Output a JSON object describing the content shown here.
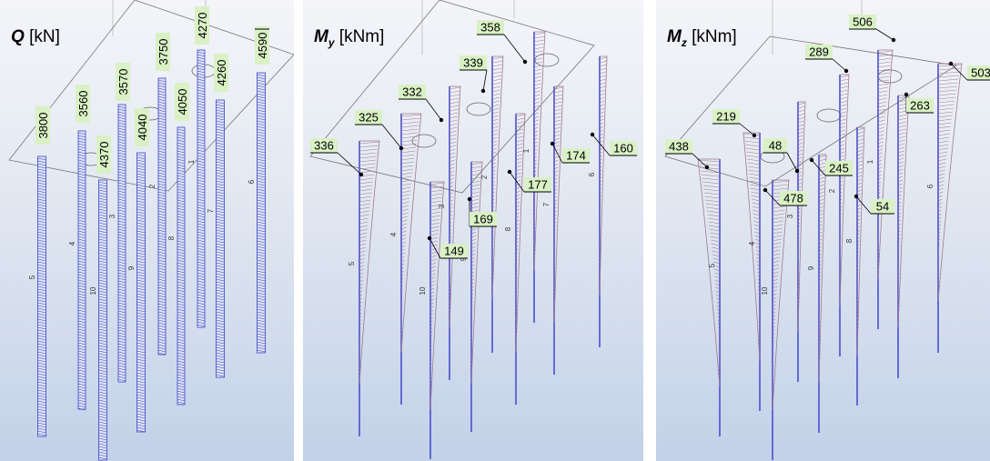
{
  "colors": {
    "member": "#4a4fcf",
    "hatch_q": "#3b43c8",
    "hatch_m": "#a07a90",
    "label_bg": "#d9f1c4",
    "outline": "#777777"
  },
  "panels": [
    {
      "id": "q",
      "symbol": "Q",
      "subscript": "",
      "unit": "[kN]",
      "values": [
        "3800",
        "3560",
        "4370",
        "3570",
        "4040",
        "3750",
        "4050",
        "4270",
        "4260",
        "4590"
      ],
      "pile_ids": [
        "5",
        "4",
        "10",
        "3",
        "9",
        "2",
        "8",
        "1",
        "7",
        "6"
      ]
    },
    {
      "id": "my",
      "symbol": "M",
      "subscript": "y",
      "unit": "[kNm]",
      "values": [
        "336",
        "325",
        "332",
        "339",
        "358",
        "149",
        "169",
        "177",
        "174",
        "160"
      ],
      "pile_ids": [
        "5",
        "4",
        "10",
        "3",
        "9",
        "2",
        "8",
        "1",
        "7",
        "6"
      ]
    },
    {
      "id": "mz",
      "symbol": "M",
      "subscript": "z",
      "unit": "[kNm]",
      "values": [
        "438",
        "219",
        "48",
        "478",
        "289",
        "245",
        "54",
        "506",
        "263",
        "503"
      ],
      "pile_ids": [
        "5",
        "4",
        "10",
        "3",
        "9",
        "2",
        "8",
        "1",
        "7",
        "6"
      ]
    }
  ]
}
